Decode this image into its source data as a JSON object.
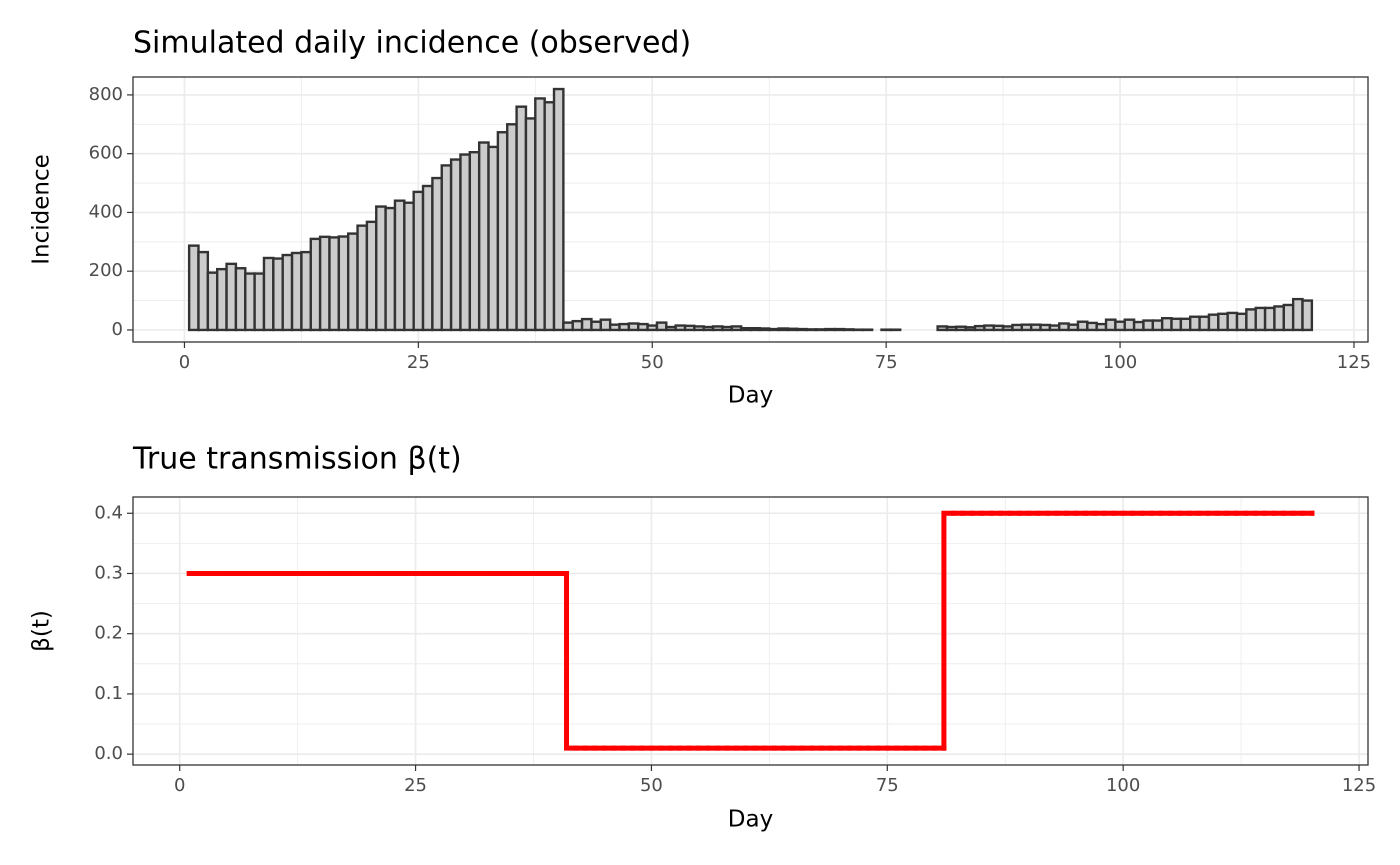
{
  "chart_data": [
    {
      "type": "bar",
      "title": "Simulated daily incidence (observed)",
      "x_label": "Day",
      "y_label": "Incidence",
      "x": [
        1,
        2,
        3,
        4,
        5,
        6,
        7,
        8,
        9,
        10,
        11,
        12,
        13,
        14,
        15,
        16,
        17,
        18,
        19,
        20,
        21,
        22,
        23,
        24,
        25,
        26,
        27,
        28,
        29,
        30,
        31,
        32,
        33,
        34,
        35,
        36,
        37,
        38,
        39,
        40,
        41,
        42,
        43,
        44,
        45,
        46,
        47,
        48,
        49,
        50,
        51,
        52,
        53,
        54,
        55,
        56,
        57,
        58,
        59,
        60,
        61,
        62,
        63,
        64,
        65,
        66,
        67,
        68,
        69,
        70,
        71,
        72,
        73,
        74,
        75,
        76,
        77,
        78,
        79,
        80,
        81,
        82,
        83,
        84,
        85,
        86,
        87,
        88,
        89,
        90,
        91,
        92,
        93,
        94,
        95,
        96,
        97,
        98,
        99,
        100,
        101,
        102,
        103,
        104,
        105,
        106,
        107,
        108,
        109,
        110,
        111,
        112,
        113,
        114,
        115,
        116,
        117,
        118,
        119,
        120
      ],
      "values": [
        287,
        265,
        195,
        207,
        225,
        210,
        192,
        192,
        245,
        243,
        255,
        262,
        265,
        310,
        317,
        315,
        318,
        328,
        355,
        368,
        420,
        415,
        440,
        433,
        470,
        490,
        517,
        560,
        580,
        597,
        605,
        638,
        623,
        673,
        700,
        760,
        720,
        788,
        775,
        820,
        25,
        30,
        37,
        28,
        35,
        18,
        20,
        22,
        20,
        15,
        25,
        10,
        15,
        14,
        12,
        10,
        12,
        10,
        12,
        6,
        6,
        5,
        3,
        5,
        4,
        3,
        2,
        2,
        3,
        3,
        2,
        1,
        1,
        0,
        1,
        1,
        0,
        0,
        0,
        0,
        12,
        10,
        11,
        9,
        13,
        15,
        14,
        12,
        17,
        18,
        18,
        17,
        15,
        22,
        18,
        28,
        24,
        20,
        35,
        28,
        35,
        27,
        32,
        32,
        40,
        38,
        38,
        45,
        45,
        52,
        55,
        58,
        55,
        70,
        75,
        75,
        80,
        85,
        105,
        100
      ],
      "color": "#cccccc",
      "edge_color": "#333333",
      "xlim": [
        -5.5,
        126.5
      ],
      "xticks": [
        0,
        25,
        50,
        75,
        100,
        125
      ],
      "ylim": [
        -41,
        861
      ],
      "yticks": [
        0,
        200,
        400,
        600,
        800
      ],
      "grid": true
    },
    {
      "type": "line",
      "title": "True transmission β(t)",
      "x_label": "Day",
      "y_label": "β(t)",
      "step": true,
      "x": [
        1,
        2,
        3,
        4,
        5,
        6,
        7,
        8,
        9,
        10,
        11,
        12,
        13,
        14,
        15,
        16,
        17,
        18,
        19,
        20,
        21,
        22,
        23,
        24,
        25,
        26,
        27,
        28,
        29,
        30,
        31,
        32,
        33,
        34,
        35,
        36,
        37,
        38,
        39,
        40,
        41,
        42,
        43,
        44,
        45,
        46,
        47,
        48,
        49,
        50,
        51,
        52,
        53,
        54,
        55,
        56,
        57,
        58,
        59,
        60,
        61,
        62,
        63,
        64,
        65,
        66,
        67,
        68,
        69,
        70,
        71,
        72,
        73,
        74,
        75,
        76,
        77,
        78,
        79,
        80,
        81,
        82,
        83,
        84,
        85,
        86,
        87,
        88,
        89,
        90,
        91,
        92,
        93,
        94,
        95,
        96,
        97,
        98,
        99,
        100,
        101,
        102,
        103,
        104,
        105,
        106,
        107,
        108,
        109,
        110,
        111,
        112,
        113,
        114,
        115,
        116,
        117,
        118,
        119,
        120
      ],
      "values": [
        0.3,
        0.3,
        0.3,
        0.3,
        0.3,
        0.3,
        0.3,
        0.3,
        0.3,
        0.3,
        0.3,
        0.3,
        0.3,
        0.3,
        0.3,
        0.3,
        0.3,
        0.3,
        0.3,
        0.3,
        0.3,
        0.3,
        0.3,
        0.3,
        0.3,
        0.3,
        0.3,
        0.3,
        0.3,
        0.3,
        0.3,
        0.3,
        0.3,
        0.3,
        0.3,
        0.3,
        0.3,
        0.3,
        0.3,
        0.3,
        0.01,
        0.01,
        0.01,
        0.01,
        0.01,
        0.01,
        0.01,
        0.01,
        0.01,
        0.01,
        0.01,
        0.01,
        0.01,
        0.01,
        0.01,
        0.01,
        0.01,
        0.01,
        0.01,
        0.01,
        0.01,
        0.01,
        0.01,
        0.01,
        0.01,
        0.01,
        0.01,
        0.01,
        0.01,
        0.01,
        0.01,
        0.01,
        0.01,
        0.01,
        0.01,
        0.01,
        0.01,
        0.01,
        0.01,
        0.01,
        0.4,
        0.4,
        0.4,
        0.4,
        0.4,
        0.4,
        0.4,
        0.4,
        0.4,
        0.4,
        0.4,
        0.4,
        0.4,
        0.4,
        0.4,
        0.4,
        0.4,
        0.4,
        0.4,
        0.4,
        0.4,
        0.4,
        0.4,
        0.4,
        0.4,
        0.4,
        0.4,
        0.4,
        0.4,
        0.4,
        0.4,
        0.4,
        0.4,
        0.4,
        0.4,
        0.4,
        0.4,
        0.4,
        0.4,
        0.4
      ],
      "color": "#ff0000",
      "xlim": [
        -4.95,
        125.95
      ],
      "xticks": [
        0,
        25,
        50,
        75,
        100,
        125
      ],
      "ylim": [
        -0.018,
        0.427
      ],
      "yticks": [
        {
          "value": 0,
          "label": "0.0"
        },
        0.1,
        0.2,
        0.3,
        0.4
      ],
      "grid": true
    }
  ]
}
